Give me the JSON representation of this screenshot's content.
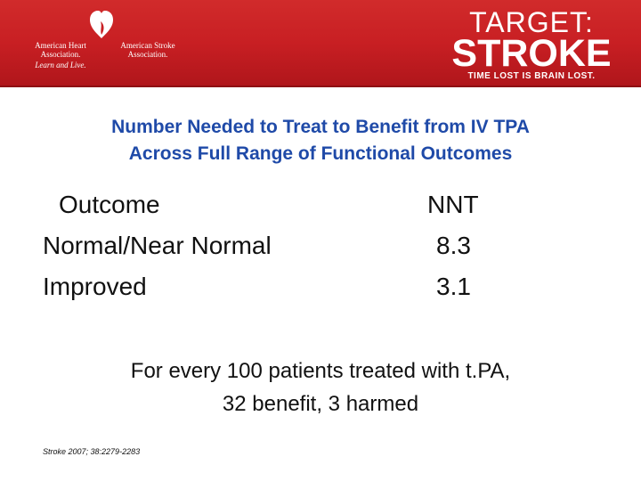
{
  "header": {
    "aha": {
      "left_line1": "American Heart",
      "left_line2": "Association.",
      "right_line1": "American Stroke",
      "right_line2": "Association.",
      "tagline": "Learn and Live."
    },
    "brand": {
      "line1": "TARGET:",
      "line2": "STROKE",
      "tagline": "TIME LOST IS BRAIN LOST."
    },
    "colors": {
      "banner": "#c81f23",
      "title": "#1f4aa8"
    }
  },
  "slide": {
    "title_line1": "Number Needed to Treat to Benefit from IV TPA",
    "title_line2": "Across Full Range of Functional Outcomes",
    "table": {
      "headers": [
        "Outcome",
        "NNT"
      ],
      "rows": [
        [
          "Normal/Near Normal",
          "8.3"
        ],
        [
          "Improved",
          "3.1"
        ]
      ]
    },
    "summary_line1": "For every 100 patients treated with t.PA,",
    "summary_line2": "32 benefit, 3 harmed",
    "citation": "Stroke 2007; 38:2279-2283"
  }
}
